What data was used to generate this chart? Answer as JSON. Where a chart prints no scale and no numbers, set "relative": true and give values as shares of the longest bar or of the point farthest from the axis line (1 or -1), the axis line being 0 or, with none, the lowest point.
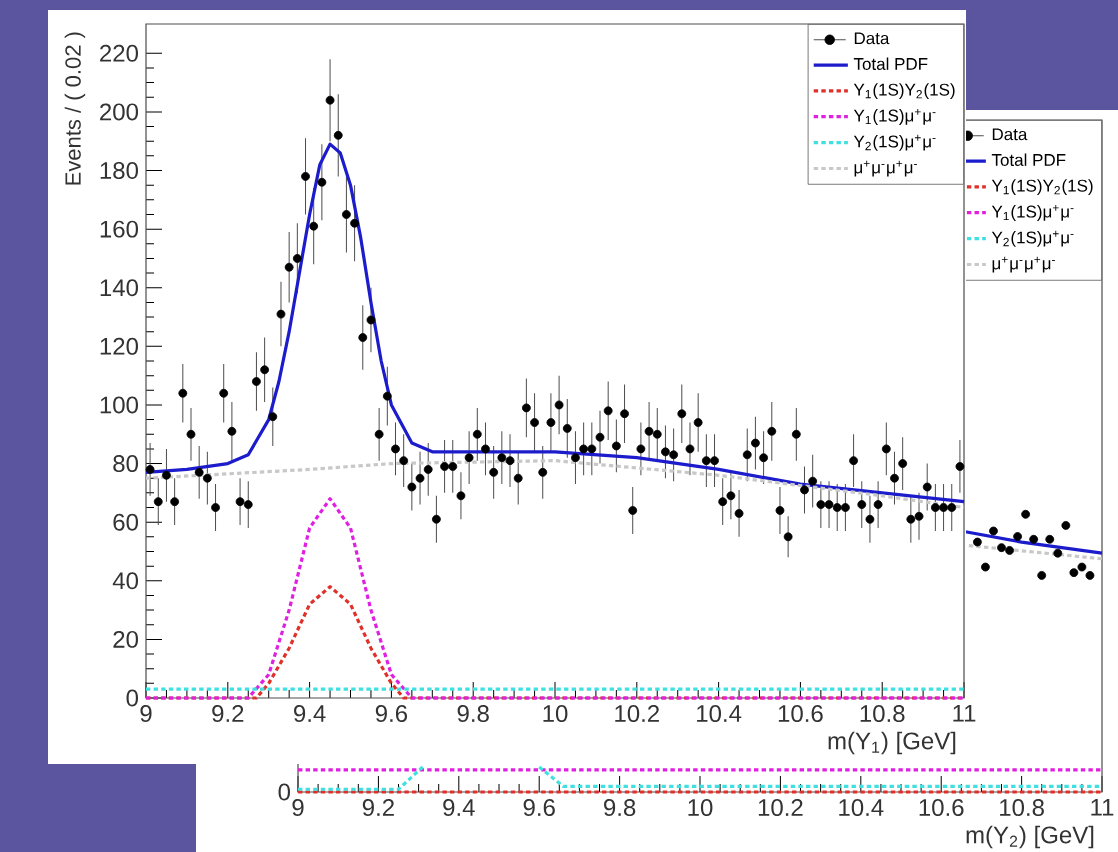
{
  "chart_data": [
    {
      "type": "scatter",
      "ylabel": "Events / ( 0.02 )",
      "xlabel": "m(Υ$_{1}$) [GeV]",
      "xlim": [
        9,
        11
      ],
      "ylim": [
        0,
        230
      ],
      "xticks": [
        9,
        9.2,
        9.4,
        9.6,
        9.8,
        10,
        10.2,
        10.4,
        10.6,
        10.8,
        11
      ],
      "yticks": [
        0,
        20,
        40,
        60,
        80,
        100,
        120,
        140,
        160,
        180,
        200,
        220
      ],
      "legend": "top right",
      "series": [
        {
          "name": "Data",
          "marker": "circle",
          "color": "#000000",
          "x": [
            9.01,
            9.03,
            9.05,
            9.07,
            9.09,
            9.11,
            9.13,
            9.15,
            9.17,
            9.19,
            9.21,
            9.23,
            9.25,
            9.27,
            9.29,
            9.31,
            9.33,
            9.35,
            9.37,
            9.39,
            9.41,
            9.43,
            9.45,
            9.47,
            9.49,
            9.51,
            9.53,
            9.55,
            9.57,
            9.59,
            9.61,
            9.63,
            9.65,
            9.67,
            9.69,
            9.71,
            9.73,
            9.75,
            9.77,
            9.79,
            9.81,
            9.83,
            9.85,
            9.87,
            9.89,
            9.91,
            9.93,
            9.95,
            9.97,
            9.99,
            10.01,
            10.03,
            10.05,
            10.07,
            10.09,
            10.11,
            10.13,
            10.15,
            10.17,
            10.19,
            10.21,
            10.23,
            10.25,
            10.27,
            10.29,
            10.31,
            10.33,
            10.35,
            10.37,
            10.39,
            10.41,
            10.43,
            10.45,
            10.47,
            10.49,
            10.51,
            10.53,
            10.55,
            10.57,
            10.59,
            10.61,
            10.63,
            10.65,
            10.67,
            10.69,
            10.71,
            10.73,
            10.75,
            10.77,
            10.79,
            10.81,
            10.83,
            10.85,
            10.87,
            10.89,
            10.91,
            10.93,
            10.95,
            10.97,
            10.99
          ],
          "values": [
            78,
            67,
            76,
            67,
            104,
            90,
            77,
            75,
            65,
            104,
            91,
            67,
            66,
            108,
            112,
            96,
            131,
            147,
            150,
            178,
            161,
            176,
            204,
            192,
            165,
            162,
            123,
            129,
            90,
            103,
            85,
            81,
            72,
            75,
            78,
            61,
            79,
            79,
            69,
            82,
            90,
            85,
            77,
            82,
            81,
            75,
            99,
            94,
            77,
            94,
            100,
            92,
            82,
            85,
            85,
            89,
            98,
            86,
            97,
            64,
            85,
            91,
            90,
            84,
            83,
            97,
            85,
            94,
            81,
            81,
            67,
            69,
            63,
            83,
            87,
            82,
            91,
            64,
            55,
            90,
            71,
            74,
            66,
            66,
            65,
            65,
            81,
            66,
            61,
            66,
            85,
            75,
            80,
            61,
            62,
            72,
            65,
            65,
            65,
            79
          ],
          "errors": [
            9,
            8,
            9,
            8,
            10,
            9,
            9,
            9,
            8,
            10,
            10,
            8,
            8,
            10,
            11,
            10,
            11,
            12,
            12,
            13,
            13,
            13,
            14,
            14,
            13,
            13,
            11,
            11,
            9,
            10,
            9,
            9,
            8,
            9,
            9,
            8,
            9,
            9,
            8,
            9,
            9,
            9,
            9,
            9,
            9,
            9,
            10,
            10,
            9,
            10,
            10,
            10,
            9,
            9,
            9,
            9,
            10,
            9,
            10,
            8,
            9,
            10,
            9,
            9,
            9,
            10,
            9,
            10,
            9,
            9,
            8,
            8,
            8,
            9,
            9,
            9,
            10,
            8,
            7,
            9,
            8,
            9,
            8,
            8,
            8,
            8,
            9,
            8,
            8,
            8,
            9,
            9,
            9,
            8,
            8,
            8,
            8,
            8,
            8,
            9
          ]
        },
        {
          "name": "Total PDF",
          "type": "line",
          "line_style": "solid",
          "color": "#1c1ccc",
          "x": [
            9,
            9.1,
            9.2,
            9.25,
            9.3,
            9.325,
            9.35,
            9.375,
            9.4,
            9.425,
            9.45,
            9.475,
            9.5,
            9.525,
            9.55,
            9.575,
            9.6,
            9.65,
            9.7,
            9.8,
            10,
            10.2,
            10.4,
            10.6,
            10.8,
            11
          ],
          "values": [
            77,
            78,
            80,
            83,
            95,
            108,
            125,
            145,
            165,
            182,
            189,
            186,
            175,
            157,
            135,
            115,
            100,
            87,
            84,
            84,
            84,
            82,
            78,
            73,
            70,
            67
          ]
        },
        {
          "name": "Υ$_{1}$(1S)Υ$_{2}$(1S)",
          "type": "line",
          "line_style": "dotted",
          "color": "#e0302a",
          "x": [
            9,
            9.27,
            9.3,
            9.35,
            9.4,
            9.45,
            9.5,
            9.55,
            9.6,
            9.63,
            11
          ],
          "values": [
            0,
            0,
            5,
            17,
            32,
            38,
            32,
            17,
            5,
            0,
            0
          ]
        },
        {
          "name": "Υ$_{1}$(1S)μ$^{+}$μ$^{-}$",
          "type": "line",
          "line_style": "dotted",
          "color": "#e020e0",
          "x": [
            9,
            9.25,
            9.3,
            9.35,
            9.4,
            9.45,
            9.5,
            9.55,
            9.6,
            9.65,
            11
          ],
          "values": [
            0,
            0,
            8,
            30,
            58,
            68,
            58,
            30,
            8,
            0,
            0
          ]
        },
        {
          "name": "Υ$_{2}$(1S)μ$^{+}$μ$^{-}$",
          "type": "line",
          "line_style": "dotted",
          "color": "#40e0e0",
          "x": [
            9,
            11
          ],
          "values": [
            3,
            3
          ]
        },
        {
          "name": "μ$^{+}$μ$^{-}$μ$^{+}$μ$^{-}$",
          "type": "line",
          "line_style": "dotted",
          "color": "#c8c8c8",
          "x": [
            9,
            9.4,
            9.6,
            10,
            10.4,
            10.8,
            11
          ],
          "values": [
            75,
            78,
            80,
            81,
            76,
            69,
            65
          ]
        }
      ]
    },
    {
      "type": "scatter",
      "relative": true,
      "xlabel": "m(Υ$_{2}$) [GeV]",
      "xlim": [
        9,
        11
      ],
      "xticks": [
        9,
        9.2,
        9.4,
        9.6,
        9.8,
        10,
        10.2,
        10.4,
        10.6,
        10.8,
        11
      ],
      "legend": "top right",
      "annotations": [
        {
          "text": "0",
          "x": 9,
          "y": 0
        }
      ],
      "series": [
        {
          "name": "Data",
          "marker": "circle",
          "color": "#000000",
          "x": [
            10.69,
            10.71,
            10.73,
            10.75,
            10.77,
            10.79,
            10.81,
            10.83,
            10.85,
            10.87,
            10.89,
            10.91,
            10.93,
            10.95,
            10.97
          ],
          "values": [
            0.9,
            0.81,
            0.94,
            0.88,
            0.87,
            0.92,
            1,
            0.91,
            0.78,
            0.91,
            0.86,
            0.96,
            0.79,
            0.81,
            0.78
          ]
        },
        {
          "name": "Total PDF",
          "type": "line",
          "line_style": "solid",
          "color": "#1c1ccc",
          "x": [
            10.65,
            10.8,
            11
          ],
          "values": [
            0.94,
            0.9,
            0.86
          ]
        },
        {
          "name": "Υ$_{1}$(1S)Υ$_{2}$(1S)",
          "type": "line",
          "line_style": "dotted",
          "color": "#e0302a",
          "x": [
            9,
            11
          ],
          "values": [
            0,
            0
          ]
        },
        {
          "name": "Υ$_{1}$(1S)μ$^{+}$μ$^{-}$",
          "type": "line",
          "line_style": "dotted",
          "color": "#e020e0",
          "x": [
            9,
            11
          ],
          "values": [
            0.08,
            0.08
          ]
        },
        {
          "name": "Υ$_{2}$(1S)μ$^{+}$μ$^{-}$",
          "type": "line",
          "line_style": "dotted",
          "color": "#40e0e0",
          "x": [
            9,
            9.25,
            9.31,
            9.35,
            9.6,
            9.66,
            11
          ],
          "values": [
            0.01,
            0.01,
            0.09,
            null,
            0.09,
            0.02,
            0.02
          ]
        },
        {
          "name": "μ$^{+}$μ$^{-}$μ$^{+}$μ$^{-}$",
          "type": "line",
          "line_style": "dotted",
          "color": "#c8c8c8",
          "x": [
            10.65,
            11
          ],
          "values": [
            0.89,
            0.84
          ]
        }
      ]
    }
  ]
}
